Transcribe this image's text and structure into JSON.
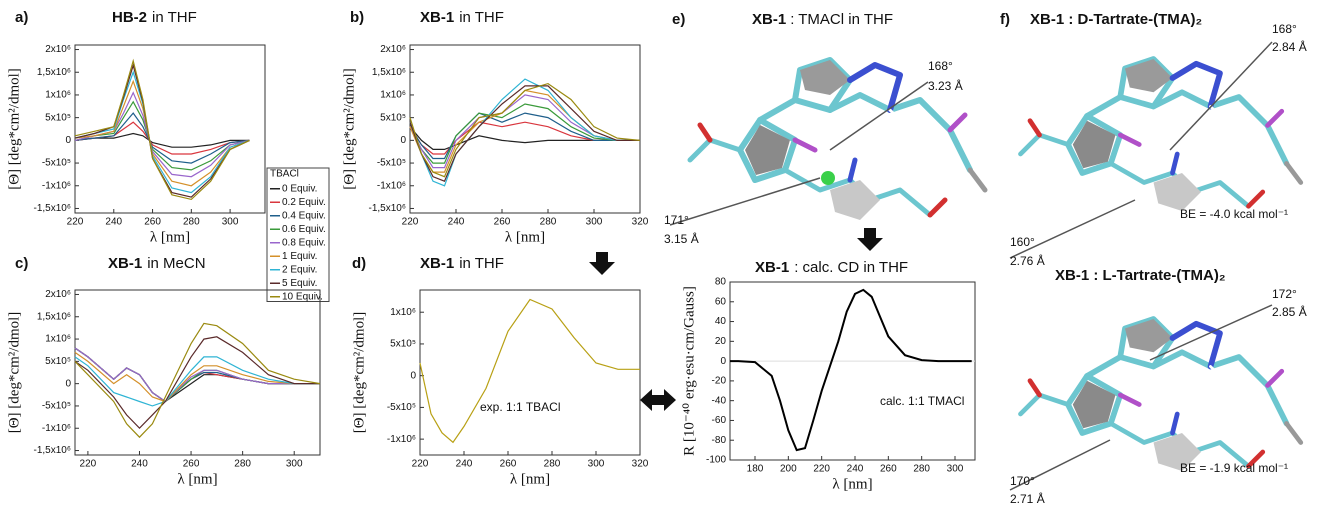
{
  "chart_data": [
    {
      "type": "line",
      "label": "a)",
      "title_bold": "HB-2",
      "title": "in THF",
      "xlabel": "λ [nm]",
      "ylabel": "[Θ] [deg*cm²/dmol]",
      "x": [
        220,
        230,
        240,
        245,
        250,
        255,
        260,
        270,
        280,
        290,
        300,
        310
      ],
      "xlim": [
        220,
        318
      ],
      "ylim": [
        -1600000,
        2100000
      ],
      "xticks": [
        220,
        240,
        260,
        280,
        300
      ],
      "yticks": [
        {
          "value": 2000000,
          "label": "2x10⁶"
        },
        {
          "value": 1500000,
          "label": "1,5x10⁶"
        },
        {
          "value": 1000000,
          "label": "1x10⁶"
        },
        {
          "value": 500000,
          "label": "5x10⁵"
        },
        0,
        {
          "value": -500000,
          "label": "-5x10⁵"
        },
        {
          "value": -1000000,
          "label": "-1x10⁶"
        },
        {
          "value": -1500000,
          "label": "-1,5x10⁶"
        }
      ],
      "legend_title": "TBACl",
      "series": [
        {
          "name": "0 Equiv.",
          "color": "#222222",
          "values": [
            0,
            50000.0,
            50000.0,
            100000.0,
            150000.0,
            100000.0,
            -50000.0,
            -150000.0,
            -150000.0,
            -100000.0,
            0,
            0
          ]
        },
        {
          "name": "0.2 Equiv.",
          "color": "#d9363e",
          "values": [
            0,
            50000.0,
            100000.0,
            250000.0,
            400000.0,
            200000.0,
            -100000.0,
            -300000.0,
            -300000.0,
            -200000.0,
            -50000.0,
            0
          ]
        },
        {
          "name": "0.4 Equiv.",
          "color": "#1f5f8b",
          "values": [
            0,
            50000.0,
            100000.0,
            350000.0,
            600000.0,
            300000.0,
            -150000.0,
            -450000.0,
            -500000.0,
            -300000.0,
            -50000.0,
            0
          ]
        },
        {
          "name": "0.6 Equiv.",
          "color": "#3a9a3a",
          "values": [
            0,
            100000.0,
            150000.0,
            500000.0,
            850000.0,
            450000.0,
            -200000.0,
            -600000.0,
            -650000.0,
            -450000.0,
            -100000.0,
            0
          ]
        },
        {
          "name": "0.8 Equiv.",
          "color": "#9966cc",
          "values": [
            0,
            100000.0,
            200000.0,
            600000.0,
            1050000.0,
            550000.0,
            -250000.0,
            -750000.0,
            -800000.0,
            -550000.0,
            -100000.0,
            0
          ]
        },
        {
          "name": "1 Equiv.",
          "color": "#d4902a",
          "values": [
            50000.0,
            100000.0,
            200000.0,
            750000.0,
            1300000.0,
            700000.0,
            -300000.0,
            -900000.0,
            -1000000.0,
            -700000.0,
            -150000.0,
            0
          ]
        },
        {
          "name": "2 Equiv.",
          "color": "#2fb4d4",
          "values": [
            50000.0,
            150000.0,
            250000.0,
            900000.0,
            1500000.0,
            800000.0,
            -350000.0,
            -1050000.0,
            -1150000.0,
            -800000.0,
            -150000.0,
            0
          ]
        },
        {
          "name": "5 Equiv.",
          "color": "#5a2a2a",
          "values": [
            50000.0,
            150000.0,
            300000.0,
            950000.0,
            1650000.0,
            850000.0,
            -400000.0,
            -1150000.0,
            -1250000.0,
            -850000.0,
            -200000.0,
            0
          ]
        },
        {
          "name": "10 Equiv.",
          "color": "#9a8a10",
          "values": [
            100000.0,
            200000.0,
            300000.0,
            1000000.0,
            1750000.0,
            900000.0,
            -400000.0,
            -1200000.0,
            -1300000.0,
            -900000.0,
            -200000.0,
            0
          ]
        }
      ]
    },
    {
      "type": "line",
      "label": "b)",
      "title_bold": "XB-1",
      "title": "in THF",
      "xlabel": "λ [nm]",
      "ylabel": "[Θ] [deg*cm²/dmol]",
      "x": [
        220,
        225,
        230,
        235,
        240,
        250,
        260,
        270,
        280,
        290,
        300,
        310,
        320
      ],
      "xlim": [
        220,
        320
      ],
      "ylim": [
        -1600000,
        2100000
      ],
      "xticks": [
        220,
        240,
        260,
        280,
        300,
        320
      ],
      "yticks": [
        {
          "value": 2000000,
          "label": "2x10⁶"
        },
        {
          "value": 1500000,
          "label": "1,5x10⁶"
        },
        {
          "value": 1000000,
          "label": "1x10⁶"
        },
        {
          "value": 500000,
          "label": "5x10⁵"
        },
        0,
        {
          "value": -500000,
          "label": "-5x10⁵"
        },
        {
          "value": -1000000,
          "label": "-1x10⁶"
        },
        {
          "value": -1500000,
          "label": "-1,5x10⁶"
        }
      ],
      "series": [
        {
          "color": "#222222",
          "values": [
            300000.0,
            0,
            -200000.0,
            -200000.0,
            -100000.0,
            100000.0,
            0,
            -50000.0,
            0,
            0,
            0,
            0,
            0
          ]
        },
        {
          "color": "#d9363e",
          "values": [
            300000.0,
            -100000.0,
            -300000.0,
            -300000.0,
            0,
            400000.0,
            300000.0,
            400000.0,
            300000.0,
            100000.0,
            0,
            0,
            0
          ]
        },
        {
          "color": "#1f5f8b",
          "values": [
            300000.0,
            -100000.0,
            -400000.0,
            -400000.0,
            100000.0,
            600000.0,
            400000.0,
            600000.0,
            500000.0,
            200000.0,
            0,
            0,
            0
          ]
        },
        {
          "color": "#3a9a3a",
          "values": [
            300000.0,
            -200000.0,
            -500000.0,
            -500000.0,
            100000.0,
            600000.0,
            500000.0,
            800000.0,
            700000.0,
            300000.0,
            50000.0,
            0,
            0
          ]
        },
        {
          "color": "#9966cc",
          "values": [
            300000.0,
            -200000.0,
            -600000.0,
            -600000.0,
            0,
            500000.0,
            600000.0,
            1000000.0,
            900000.0,
            400000.0,
            100000.0,
            0,
            0
          ]
        },
        {
          "color": "#d4902a",
          "values": [
            300000.0,
            -300000.0,
            -700000.0,
            -700000.0,
            -100000.0,
            400000.0,
            600000.0,
            1100000.0,
            1000000.0,
            500000.0,
            100000.0,
            0,
            0
          ]
        },
        {
          "color": "#2fb4d4",
          "values": [
            400000.0,
            -300000.0,
            -900000.0,
            -1000000.0,
            -300000.0,
            300000.0,
            900000.0,
            1350000.0,
            1100000.0,
            500000.0,
            100000.0,
            0,
            0
          ]
        },
        {
          "color": "#5a2a2a",
          "values": [
            400000.0,
            -300000.0,
            -800000.0,
            -900000.0,
            -300000.0,
            300000.0,
            800000.0,
            1200000.0,
            1200000.0,
            700000.0,
            200000.0,
            0,
            0
          ]
        },
        {
          "color": "#9a8a10",
          "values": [
            500000.0,
            -300000.0,
            -700000.0,
            -800000.0,
            -200000.0,
            500000.0,
            600000.0,
            1100000.0,
            1250000.0,
            900000.0,
            300000.0,
            50000.0,
            0
          ]
        }
      ]
    },
    {
      "type": "line",
      "label": "c)",
      "title_bold": "XB-1",
      "title": "in MeCN",
      "xlabel": "λ [nm]",
      "ylabel": "[Θ] [deg*cm²/dmol]",
      "x": [
        215,
        220,
        230,
        235,
        240,
        245,
        250,
        260,
        265,
        270,
        280,
        290,
        300,
        310
      ],
      "xlim": [
        215,
        310
      ],
      "ylim": [
        -1600000,
        2100000
      ],
      "xticks": [
        220,
        240,
        260,
        280,
        300
      ],
      "yticks": [
        {
          "value": 2000000,
          "label": "2x10⁶"
        },
        {
          "value": 1500000,
          "label": "1,5x10⁶"
        },
        {
          "value": 1000000,
          "label": "1x10⁶"
        },
        {
          "value": 500000,
          "label": "5x10⁵"
        },
        0,
        {
          "value": -500000,
          "label": "-5x10⁵"
        },
        {
          "value": -1000000,
          "label": "-1x10⁶"
        },
        {
          "value": -1500000,
          "label": "-1,5x10⁶"
        }
      ],
      "series": [
        {
          "color": "#222222",
          "values": [
            800000.0,
            600000.0,
            100000.0,
            350000.0,
            200000.0,
            -200000.0,
            -400000.0,
            0,
            200000.0,
            200000.0,
            100000.0,
            0,
            0,
            0
          ]
        },
        {
          "color": "#d9363e",
          "values": [
            800000.0,
            600000.0,
            100000.0,
            350000.0,
            200000.0,
            -200000.0,
            -400000.0,
            100000.0,
            250000.0,
            200000.0,
            100000.0,
            0,
            0,
            0
          ]
        },
        {
          "color": "#1f5f8b",
          "values": [
            800000.0,
            600000.0,
            100000.0,
            350000.0,
            200000.0,
            -200000.0,
            -400000.0,
            100000.0,
            250000.0,
            250000.0,
            100000.0,
            0,
            0,
            0
          ]
        },
        {
          "color": "#3a9a3a",
          "values": [
            800000.0,
            600000.0,
            100000.0,
            350000.0,
            200000.0,
            -200000.0,
            -400000.0,
            100000.0,
            300000.0,
            300000.0,
            100000.0,
            0,
            0,
            0
          ]
        },
        {
          "color": "#9966cc",
          "values": [
            800000.0,
            600000.0,
            100000.0,
            350000.0,
            200000.0,
            -200000.0,
            -400000.0,
            150000.0,
            300000.0,
            300000.0,
            100000.0,
            0,
            0,
            0
          ]
        },
        {
          "color": "#d4902a",
          "values": [
            700000.0,
            500000.0,
            0,
            200000.0,
            0,
            -300000.0,
            -400000.0,
            200000.0,
            400000.0,
            400000.0,
            200000.0,
            50000.0,
            0,
            0
          ]
        },
        {
          "color": "#2fb4d4",
          "values": [
            600000.0,
            400000.0,
            -200000.0,
            -300000.0,
            -400000.0,
            -500000.0,
            -400000.0,
            300000.0,
            600000.0,
            600000.0,
            300000.0,
            100000.0,
            0,
            0
          ]
        },
        {
          "color": "#5a2a2a",
          "values": [
            500000.0,
            300000.0,
            -300000.0,
            -700000.0,
            -1000000.0,
            -700000.0,
            -400000.0,
            600000.0,
            1000000.0,
            1050000.0,
            700000.0,
            200000.0,
            0,
            0
          ]
        },
        {
          "color": "#9a8a10",
          "values": [
            500000.0,
            200000.0,
            -400000.0,
            -900000.0,
            -1200000.0,
            -900000.0,
            -300000.0,
            900000.0,
            1350000.0,
            1300000.0,
            900000.0,
            300000.0,
            100000.0,
            0
          ]
        }
      ]
    },
    {
      "type": "line",
      "label": "d)",
      "title_bold": "XB-1",
      "title": "in THF",
      "xlabel": "λ [nm]",
      "ylabel": "[Θ] [deg*cm²/dmol]",
      "annotation": "exp. 1:1 TBACl",
      "x": [
        220,
        225,
        230,
        235,
        240,
        250,
        260,
        270,
        280,
        290,
        300,
        310,
        320
      ],
      "xlim": [
        220,
        320
      ],
      "ylim": [
        -1250000,
        1350000
      ],
      "xticks": [
        220,
        240,
        260,
        280,
        300,
        320
      ],
      "yticks": [
        {
          "value": 1000000,
          "label": "1x10⁶"
        },
        {
          "value": 500000,
          "label": "5x10⁵"
        },
        0,
        {
          "value": -500000,
          "label": "-5x10⁵"
        },
        {
          "value": -1000000,
          "label": "-1x10⁶"
        }
      ],
      "series": [
        {
          "color": "#b8a014",
          "values": [
            200000.0,
            -600000.0,
            -900000.0,
            -1050000.0,
            -800000.0,
            -200000.0,
            700000.0,
            1200000.0,
            1050000.0,
            600000.0,
            200000.0,
            100000.0,
            100000.0
          ]
        }
      ]
    },
    {
      "type": "line",
      "title_bold": "XB-1",
      "title": ": calc. CD in THF",
      "xlabel": "λ [nm]",
      "ylabel": "R [10⁻⁴⁰ erg·esu·cm/Gauss]",
      "annotation": "calc. 1:1 TMACl",
      "x": [
        165,
        170,
        180,
        190,
        195,
        200,
        205,
        210,
        215,
        220,
        225,
        230,
        235,
        240,
        245,
        250,
        255,
        260,
        270,
        280,
        290,
        300,
        310
      ],
      "xlim": [
        165,
        312
      ],
      "ylim": [
        -100,
        80
      ],
      "zero_line": true,
      "xticks": [
        180,
        200,
        220,
        240,
        260,
        280,
        300
      ],
      "yticks": [
        80,
        60,
        40,
        20,
        0,
        -20,
        -40,
        -60,
        -80,
        -100
      ],
      "series": [
        {
          "color": "#000000",
          "values": [
            0,
            0,
            -1,
            -15,
            -40,
            -70,
            -90,
            -88,
            -60,
            -30,
            -5,
            20,
            50,
            68,
            72,
            65,
            45,
            25,
            6,
            1,
            0,
            0,
            0
          ]
        }
      ]
    }
  ],
  "molecules": [
    {
      "label": "e)",
      "title_bold": "XB-1",
      "title": ": TMACl in THF",
      "notes": [
        {
          "angle": "168°",
          "distance": "3.23 Å"
        },
        {
          "angle": "171°",
          "distance": "3.15 Å"
        }
      ]
    },
    {
      "label": "f)",
      "title_bold": "XB-1 : D-Tartrate-(TMA)₂",
      "notes": [
        {
          "angle": "168°",
          "distance": "2.84 Å"
        },
        {
          "angle": "160°",
          "distance": "2.76 Å"
        }
      ],
      "energy": "BE = -4.0 kcal mol⁻¹"
    },
    {
      "title_bold": "XB-1 : L-Tartrate-(TMA)₂",
      "notes": [
        {
          "angle": "172°",
          "distance": "2.85 Å"
        },
        {
          "angle": "170°",
          "distance": "2.71 Å"
        }
      ],
      "energy": "BE = -1.9 kcal mol⁻¹"
    }
  ]
}
